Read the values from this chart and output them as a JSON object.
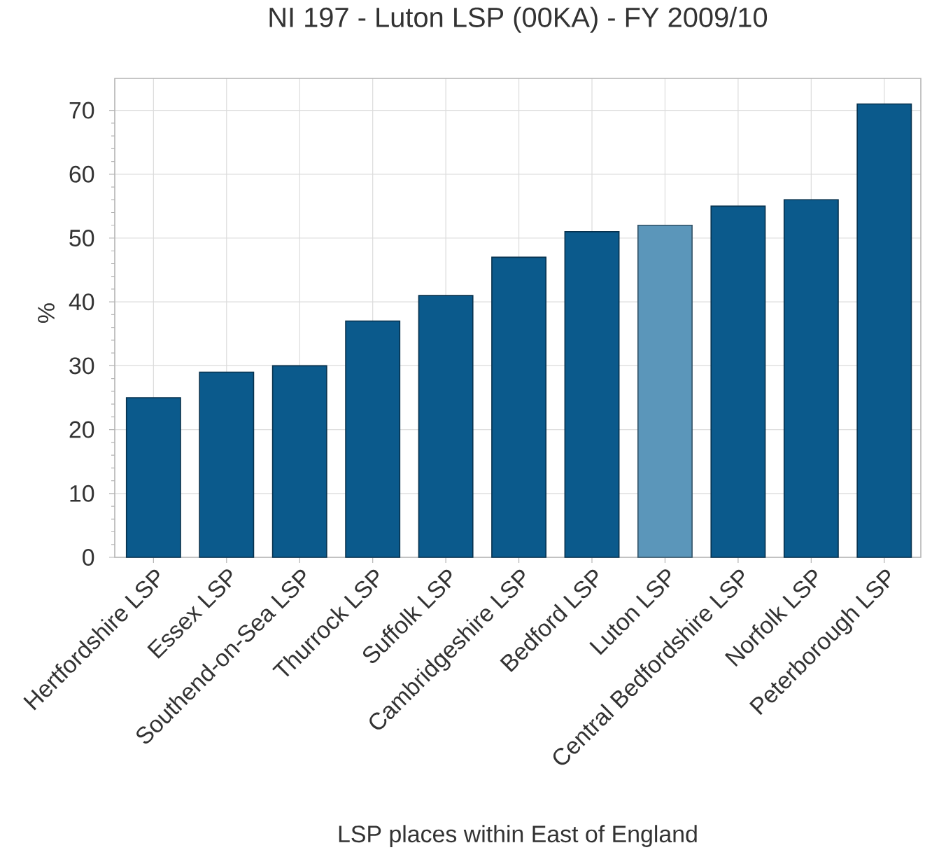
{
  "chart_data": {
    "type": "bar",
    "title": "NI 197 - Luton LSP (00KA) - FY 2009/10",
    "xlabel": "LSP places within East of England",
    "ylabel": "%",
    "categories": [
      "Hertfordshire LSP",
      "Essex LSP",
      "Southend-on-Sea LSP",
      "Thurrock LSP",
      "Suffolk LSP",
      "Cambridgeshire LSP",
      "Bedford LSP",
      "Luton LSP",
      "Central Bedfordshire LSP",
      "Norfolk LSP",
      "Peterborough LSP"
    ],
    "values": [
      25,
      29,
      30,
      37,
      41,
      47,
      51,
      52,
      55,
      56,
      71
    ],
    "colors": [
      "#0b5a8c",
      "#0b5a8c",
      "#0b5a8c",
      "#0b5a8c",
      "#0b5a8c",
      "#0b5a8c",
      "#0b5a8c",
      "#5b96ba",
      "#0b5a8c",
      "#0b5a8c",
      "#0b5a8c"
    ],
    "ylim": [
      0,
      75
    ],
    "yticks": [
      0,
      10,
      20,
      30,
      40,
      50,
      60,
      70
    ],
    "grid": true
  }
}
